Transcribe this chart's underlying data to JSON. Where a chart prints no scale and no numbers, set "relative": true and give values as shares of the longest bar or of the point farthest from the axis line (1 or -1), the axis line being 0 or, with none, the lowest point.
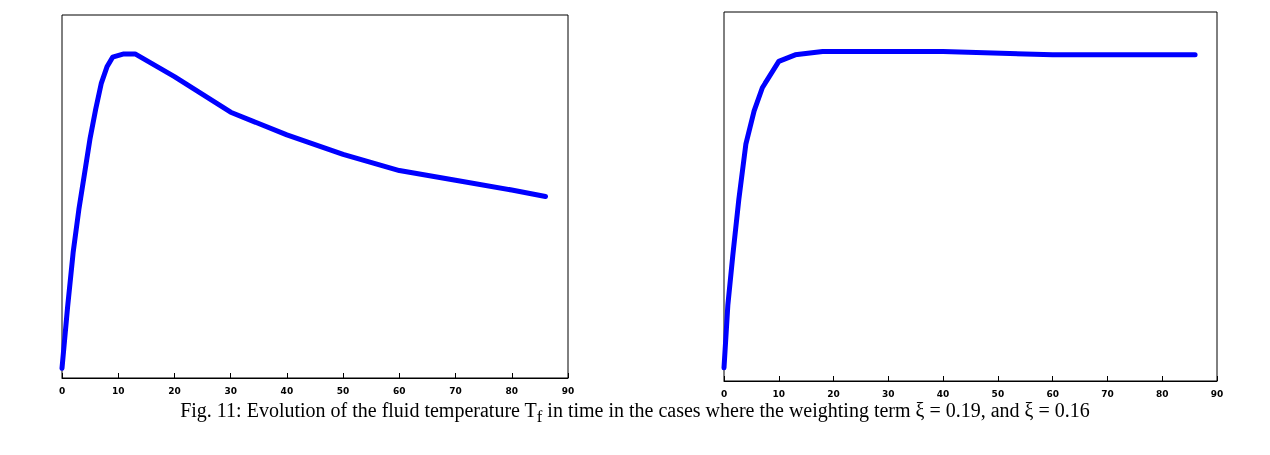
{
  "chart_data": [
    {
      "type": "line",
      "relative": true,
      "xlim": [
        0,
        90
      ],
      "xticks": [
        0,
        10,
        20,
        30,
        40,
        50,
        60,
        70,
        80,
        90
      ],
      "grid": false,
      "marker": "none",
      "line_style": "solid",
      "annotations": [
        "Fig. 11:  Evolution of the fluid temperature T$_{f}$  in time in the cases where the weighting term ξ = 0.19, and ξ = 0.16"
      ],
      "series": [
        {
          "color": "#0000ff",
          "x": [
            0,
            1,
            2,
            3,
            4,
            5,
            6,
            7,
            8,
            9,
            11,
            13,
            16,
            20,
            30,
            40,
            50,
            60,
            70,
            80,
            86
          ],
          "values": [
            0.03,
            0.22,
            0.39,
            0.52,
            0.63,
            0.74,
            0.83,
            0.91,
            0.96,
            0.99,
            1,
            1,
            0.97,
            0.93,
            0.82,
            0.75,
            0.69,
            0.64,
            0.61,
            0.58,
            0.56
          ]
        }
      ]
    },
    {
      "type": "line",
      "relative": true,
      "xlim": [
        0,
        90
      ],
      "xticks": [
        0,
        10,
        20,
        30,
        40,
        50,
        60,
        70,
        80,
        90
      ],
      "grid": false,
      "marker": "none",
      "line_style": "solid",
      "series": [
        {
          "color": "#0000ff",
          "x": [
            0,
            0.7,
            1.6,
            2.7,
            4,
            5.5,
            7,
            10,
            13,
            18,
            40,
            60,
            86
          ],
          "values": [
            0.04,
            0.23,
            0.38,
            0.55,
            0.72,
            0.82,
            0.89,
            0.97,
            0.99,
            1,
            1,
            0.99,
            0.99
          ]
        }
      ]
    }
  ]
}
